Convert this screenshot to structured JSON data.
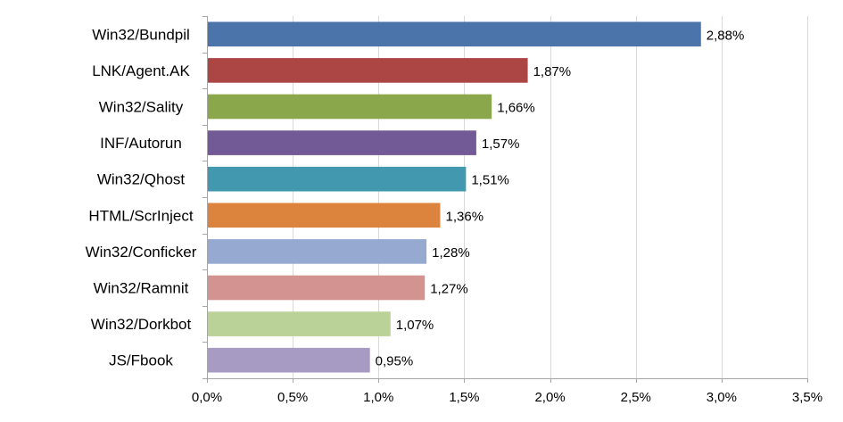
{
  "chart_data": {
    "type": "bar",
    "orientation": "horizontal",
    "title": "",
    "xlabel": "",
    "ylabel": "",
    "categories": [
      "Win32/Bundpil",
      "LNK/Agent.AK",
      "Win32/Sality",
      "INF/Autorun",
      "Win32/Qhost",
      "HTML/ScrInject",
      "Win32/Conficker",
      "Win32/Ramnit",
      "Win32/Dorkbot",
      "JS/Fbook"
    ],
    "values": [
      2.88,
      1.87,
      1.66,
      1.57,
      1.51,
      1.36,
      1.28,
      1.27,
      1.07,
      0.95
    ],
    "value_labels": [
      "2,88%",
      "1,87%",
      "1,66%",
      "1,57%",
      "1,51%",
      "1,36%",
      "1,28%",
      "1,27%",
      "1,07%",
      "0,95%"
    ],
    "colors": [
      "#4a74aa",
      "#ac4644",
      "#8aa84b",
      "#715a95",
      "#4198af",
      "#dc843d",
      "#95a9d1",
      "#d29391",
      "#bad197",
      "#a89bc3"
    ],
    "xlim": [
      0,
      3.5
    ],
    "xticks": [
      0,
      0.5,
      1,
      1.5,
      2,
      2.5,
      3,
      3.5
    ],
    "xtick_labels": [
      "0,0%",
      "0,5%",
      "1,0%",
      "1,5%",
      "2,0%",
      "2,5%",
      "3,0%",
      "3,5%"
    ],
    "grid": true,
    "legend": "none"
  }
}
